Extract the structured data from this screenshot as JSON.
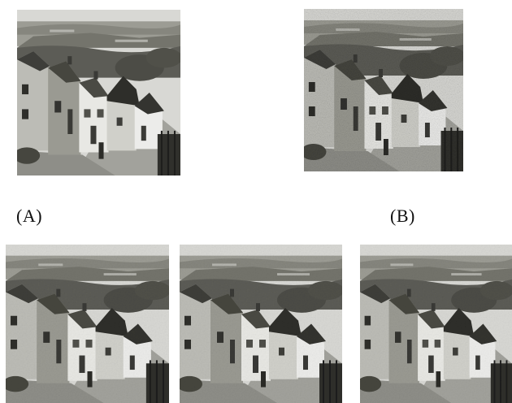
{
  "captions": {
    "a": "(A)",
    "b": "(B)"
  },
  "images": [
    {
      "id": "a",
      "subject": "village-street-photo",
      "tone": "grayscale",
      "noise": "none"
    },
    {
      "id": "b",
      "subject": "village-street-photo",
      "tone": "grayscale",
      "noise": "heavy"
    },
    {
      "id": "c",
      "subject": "village-street-photo",
      "tone": "grayscale",
      "noise": "light"
    },
    {
      "id": "d",
      "subject": "village-street-photo",
      "tone": "grayscale",
      "noise": "light"
    },
    {
      "id": "e",
      "subject": "village-street-photo",
      "tone": "grayscale",
      "noise": "light"
    }
  ],
  "colors": {
    "sky": "#d6d6d2",
    "hills": "#7a7a72",
    "road": "#9a9a94",
    "wall_light": "#e6e6e2",
    "roof_dark": "#3c3c38"
  }
}
